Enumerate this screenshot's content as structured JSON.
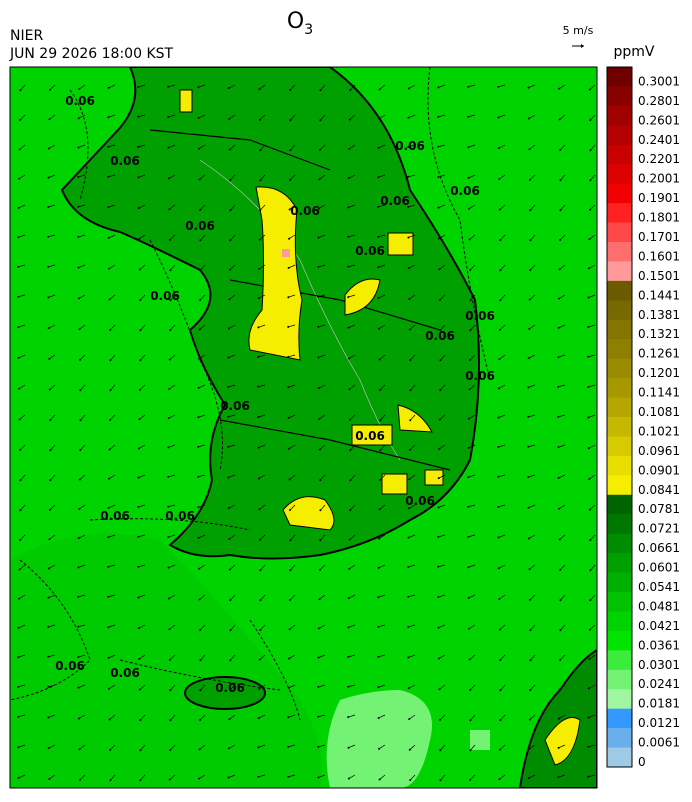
{
  "header": {
    "title": {
      "main": "O",
      "sub": "3"
    },
    "agency": "NIER",
    "datetime": "JUN 29 2026 18:00 KST",
    "wind_scale": "5 m/s",
    "unit": "ppmV"
  },
  "colorbar": {
    "labels": [
      0.3001,
      0.2801,
      0.2601,
      0.2401,
      0.2201,
      0.2001,
      0.1901,
      0.1801,
      0.1701,
      0.1601,
      0.1501,
      0.1441,
      0.1381,
      0.1321,
      0.1261,
      0.1201,
      0.1141,
      0.1081,
      0.1021,
      0.0961,
      0.0901,
      0.0841,
      0.0781,
      0.0721,
      0.0661,
      0.0601,
      0.0541,
      0.0481,
      0.0421,
      0.0361,
      0.0301,
      0.0241,
      0.0181,
      0.0121,
      0.0061,
      0
    ],
    "colors": [
      "#6e0000",
      "#880000",
      "#a00000",
      "#b40000",
      "#c80000",
      "#dc0000",
      "#f00000",
      "#ff2020",
      "#ff4848",
      "#ff6e6e",
      "#ff9a9a",
      "#6b5a00",
      "#786800",
      "#847400",
      "#8f7f00",
      "#9b8b00",
      "#a79800",
      "#b5a700",
      "#c5b800",
      "#d6ca00",
      "#e8df00",
      "#f5ee00",
      "#006400",
      "#007800",
      "#008c00",
      "#009f00",
      "#00b000",
      "#00c200",
      "#00d400",
      "#00e400",
      "#3cec3c",
      "#74f274",
      "#a0f5a0",
      "#3399ff",
      "#6aaeee",
      "#9ecae6"
    ]
  },
  "contour_labels": [
    "0.06",
    "0.06",
    "0.06",
    "0.06",
    "0.06",
    "0.06",
    "0.06",
    "0.06",
    "0.06",
    "0.06",
    "0.06",
    "0.06",
    "0.06",
    "0.06",
    "0.06",
    "0.06",
    "0.06",
    "0.06",
    "0.06",
    "0.06"
  ]
}
